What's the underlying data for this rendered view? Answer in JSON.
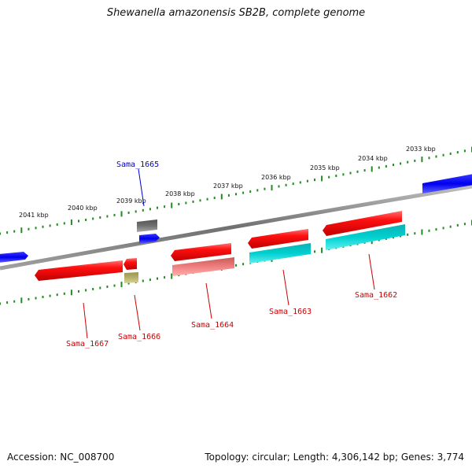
{
  "title": "Shewanella amazonensis SB2B, complete genome",
  "footer": {
    "accession": "Accession: NC_008700",
    "topology": "Topology: circular; Length: 4,306,142 bp; Genes: 3,774"
  },
  "scale_labels": [
    "2041 kbp",
    "2040 kbp",
    "2039 kbp",
    "2038 kbp",
    "2037 kbp",
    "2036 kbp",
    "2035 kbp",
    "2034 kbp",
    "2033 kbp"
  ],
  "genes": [
    {
      "label": "Sama_1665",
      "color": "#0000cc"
    },
    {
      "label": "Sama_1667",
      "color": "#cc0000"
    },
    {
      "label": "Sama_1666",
      "color": "#cc0000"
    },
    {
      "label": "Sama_1664",
      "color": "#cc0000"
    },
    {
      "label": "Sama_1663",
      "color": "#cc0000"
    },
    {
      "label": "Sama_1662",
      "color": "#cc0000"
    }
  ],
  "colors": {
    "backbone": "#808080",
    "scale": "#228b22",
    "cds_forward": "#0000ff",
    "cds_reverse": "#ff0000",
    "cog_cyan": "#00cccc",
    "cog_pink": "#f08080",
    "cog_grey": "#707070",
    "cog_olive": "#b5b06a"
  }
}
